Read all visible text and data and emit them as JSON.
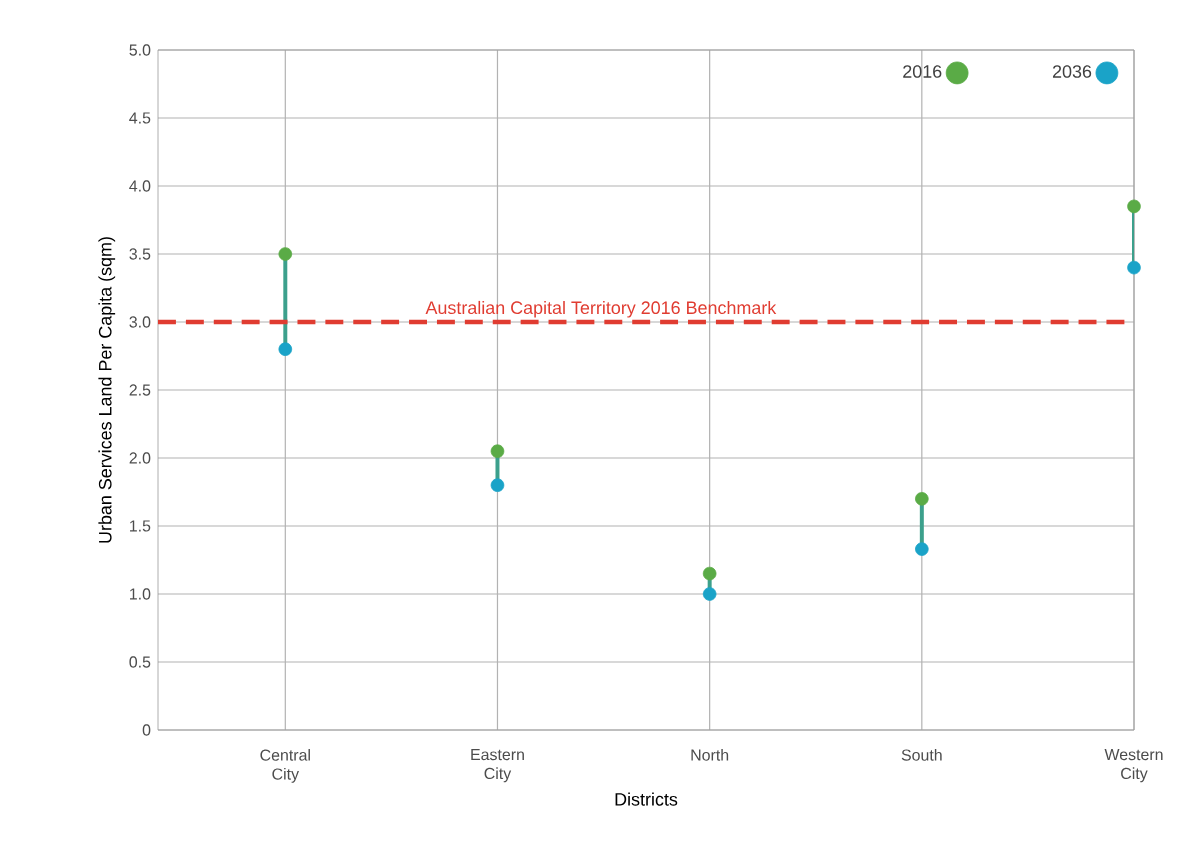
{
  "chart_data": {
    "type": "scatter",
    "xlabel": "Districts",
    "ylabel": "Urban Services Land Per Capita (sqm)",
    "categories": [
      "Central City",
      "Eastern City",
      "North",
      "South",
      "Western City"
    ],
    "series": [
      {
        "name": "2016",
        "color": "#5aab46",
        "values": [
          3.5,
          2.05,
          1.15,
          1.7,
          3.85
        ]
      },
      {
        "name": "2036",
        "color": "#1aa3c8",
        "values": [
          2.8,
          1.8,
          1.0,
          1.33,
          3.4
        ]
      }
    ],
    "ylim": [
      0,
      5
    ],
    "yticks": [
      0,
      {
        "value": 0.5,
        "label": "0.5"
      },
      {
        "value": 1,
        "label": "1.0"
      },
      {
        "value": 1.5,
        "label": "1.5"
      },
      {
        "value": 2,
        "label": "2.0"
      },
      {
        "value": 2.5,
        "label": "2.5"
      },
      {
        "value": 3,
        "label": "3.0"
      },
      {
        "value": 3.5,
        "label": "3.5"
      },
      {
        "value": 4,
        "label": "4.0"
      },
      {
        "value": 4.5,
        "label": "4.5"
      },
      {
        "value": 5,
        "label": "5.0"
      }
    ],
    "ref_lines": [
      {
        "axis": "y",
        "value": 3,
        "label": "Australian Capital Territory 2016 Benchmark",
        "color": "#e03c31",
        "line_style": "dashed"
      }
    ],
    "grid": true,
    "legend": "top right"
  }
}
